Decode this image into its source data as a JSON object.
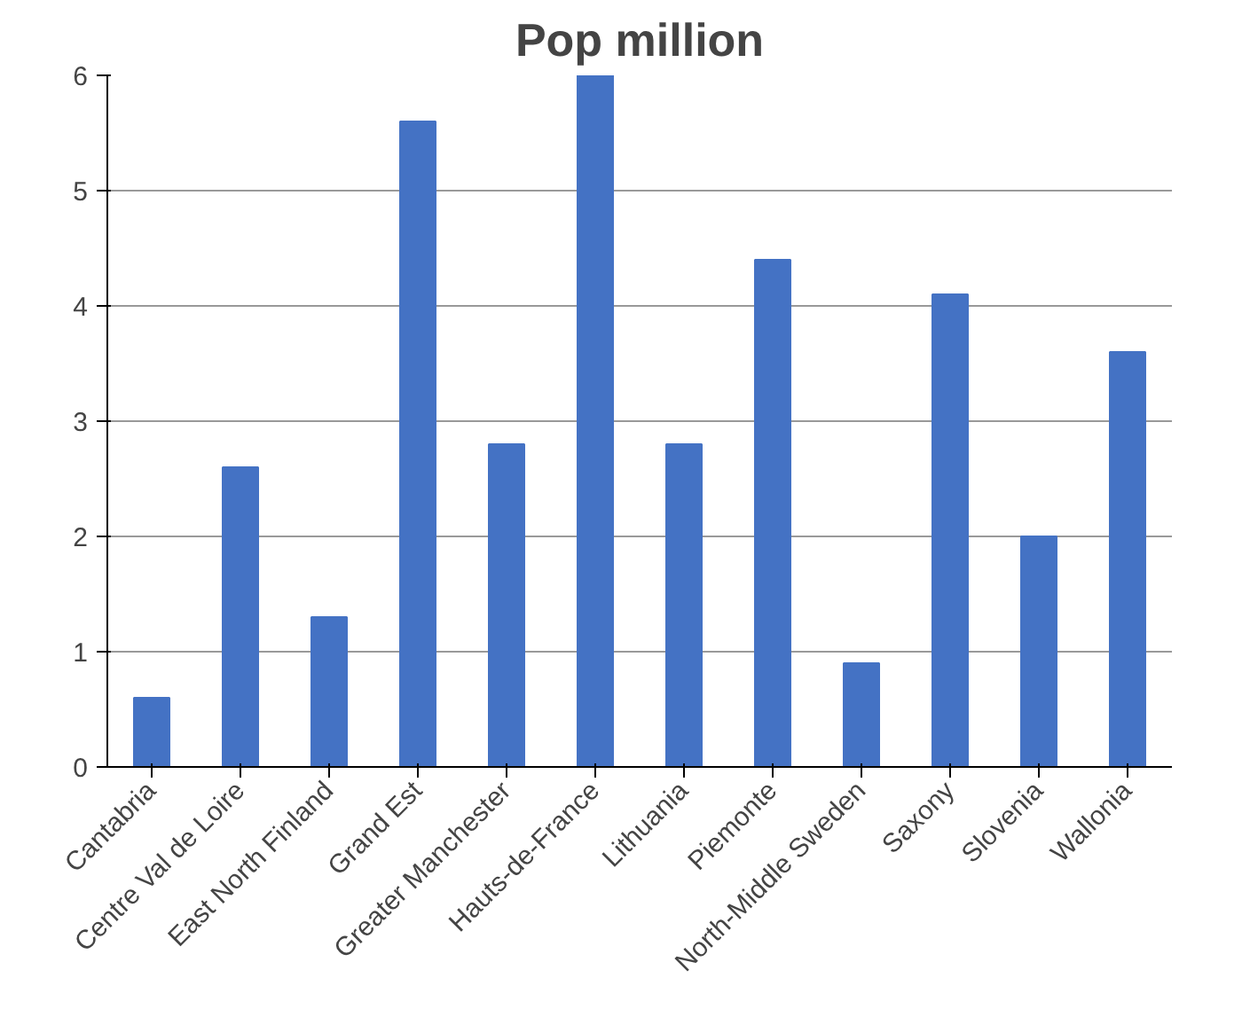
{
  "chart_data": {
    "type": "bar",
    "title": "Pop million",
    "categories": [
      "Cantabria",
      "Centre Val de Loire",
      "East North Finland",
      "Grand Est",
      "Greater Manchester",
      "Hauts-de-France",
      "Lithuania",
      "Piemonte",
      "North-Middle Sweden",
      "Saxony",
      "Slovenia",
      "Wallonia"
    ],
    "values": [
      0.6,
      2.6,
      1.3,
      5.6,
      2.8,
      6.0,
      2.8,
      4.4,
      0.9,
      4.1,
      2.0,
      3.6
    ],
    "color": "#4472c4",
    "ylim": [
      0,
      6
    ],
    "yticks": [
      0,
      1,
      2,
      3,
      4,
      5,
      6
    ],
    "grid": "y"
  }
}
